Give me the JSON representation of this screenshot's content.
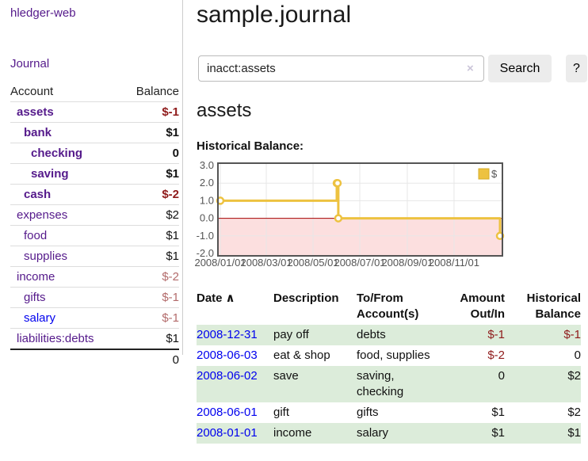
{
  "colors": {
    "link_purple": "#551a8b",
    "link_blue": "#0000ee",
    "negative_strong": "#8f1b1b",
    "negative_soft": "#b36b6b",
    "row_stripe_green": "#dcecda",
    "chart_line_gold": "#edc240"
  },
  "sidebar": {
    "app_title": "hledger-web",
    "journal_link": "Journal",
    "accounts": {
      "header": {
        "account": "Account",
        "balance": "Balance"
      },
      "rows": [
        {
          "account": "assets",
          "balance": "$-1"
        },
        {
          "account": "bank",
          "balance": "$1"
        },
        {
          "account": "checking",
          "balance": "0"
        },
        {
          "account": "saving",
          "balance": "$1"
        },
        {
          "account": "cash",
          "balance": "$-2"
        },
        {
          "account": "expenses",
          "balance": "$2"
        },
        {
          "account": "food",
          "balance": "$1"
        },
        {
          "account": "supplies",
          "balance": "$1"
        },
        {
          "account": "income",
          "balance": "$-2"
        },
        {
          "account": "gifts",
          "balance": "$-1"
        },
        {
          "account": "salary",
          "balance": "$-1"
        },
        {
          "account": "liabilities:debts",
          "balance": "$1"
        }
      ],
      "total": "0"
    }
  },
  "main": {
    "title": "sample.journal",
    "search": {
      "value": "inacct:assets",
      "clear_icon": "×",
      "button": "Search",
      "help": "?"
    },
    "account_heading": "assets",
    "register": {
      "headers": {
        "date": "Date",
        "sort_indicator": "∧",
        "description": "Description",
        "account": "To/From Account(s)",
        "amount": "Amount Out/In",
        "balance": "Historical Balance"
      },
      "rows": [
        {
          "date": "2008-12-31",
          "description": "pay off",
          "account": "debts",
          "amount": "$-1",
          "balance": "$-1"
        },
        {
          "date": "2008-06-03",
          "description": "eat & shop",
          "account": "food, supplies",
          "amount": "$-2",
          "balance": "0"
        },
        {
          "date": "2008-06-02",
          "description": "save",
          "account": "saving, checking",
          "amount": "0",
          "balance": "$2"
        },
        {
          "date": "2008-06-01",
          "description": "gift",
          "account": "gifts",
          "amount": "$1",
          "balance": "$2"
        },
        {
          "date": "2008-01-01",
          "description": "income",
          "account": "salary",
          "amount": "$1",
          "balance": "$1"
        }
      ]
    }
  },
  "chart_data": {
    "type": "line",
    "step": true,
    "title": "Historical Balance:",
    "legend": [
      {
        "label": "$",
        "color": "#edc240"
      }
    ],
    "x_dates": [
      "2008-01-01",
      "2008-06-01",
      "2008-06-02",
      "2008-06-03",
      "2008-12-31"
    ],
    "values": [
      1,
      2,
      2,
      0,
      -1
    ],
    "x_range": [
      "2008-01-01",
      "2008-12-31"
    ],
    "ylim": [
      -2,
      3
    ],
    "yticks": [
      3,
      2,
      1,
      0,
      -1,
      -2
    ],
    "xticks": [
      {
        "label": "2008/01/01",
        "date": "2008-01-01"
      },
      {
        "label": "2008/03/01",
        "date": "2008-03-01"
      },
      {
        "label": "2008/05/01",
        "date": "2008-05-01"
      },
      {
        "label": "2008/07/01",
        "date": "2008-07-01"
      },
      {
        "label": "2008/09/01",
        "date": "2008-09-01"
      },
      {
        "label": "2008/11/01",
        "date": "2008-11-01"
      }
    ],
    "line_color": "#edc240",
    "negative_fill": "#fcdfdf",
    "zero_line_color": "#a40000",
    "grid": true,
    "legend_position": "top-right"
  }
}
